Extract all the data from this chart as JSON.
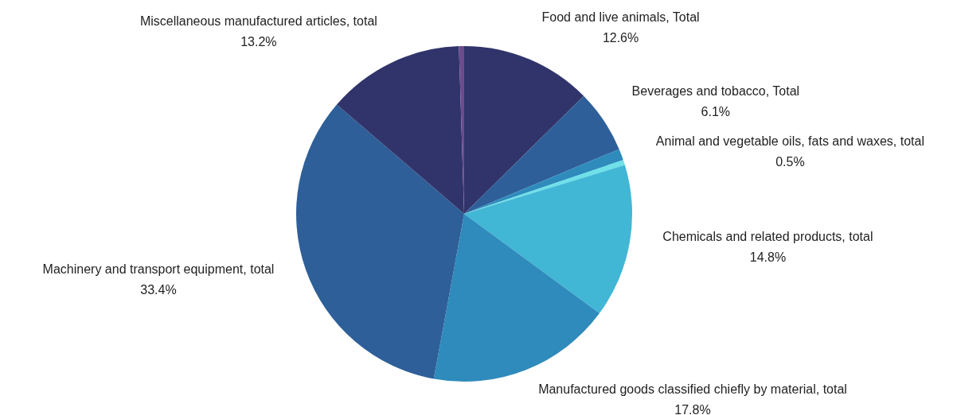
{
  "chart_data": {
    "type": "pie",
    "categories": [
      "Food and live animals, Total",
      "Beverages and tobacco, Total",
      null,
      "Animal and vegetable oils, fats and waxes, total",
      "Chemicals and related products, total",
      "Manufactured goods classified chiefly by material, total",
      "Machinery and transport equipment, total",
      "Miscellaneous manufactured articles, total",
      null
    ],
    "values": [
      12.6,
      6.1,
      1.1,
      0.5,
      14.8,
      17.8,
      33.4,
      13.2,
      0.5
    ],
    "value_labels": [
      "12.6%",
      "6.1%",
      null,
      "0.5%",
      "14.8%",
      "17.8%",
      "33.4%",
      "13.2%",
      null
    ],
    "colors": [
      "#31346b",
      "#2e5f99",
      "#2e8bbc",
      "#6ee0e8",
      "#42b6d5",
      "#2e8bbc",
      "#2e5f99",
      "#31346b",
      "#6b4c8c"
    ]
  }
}
